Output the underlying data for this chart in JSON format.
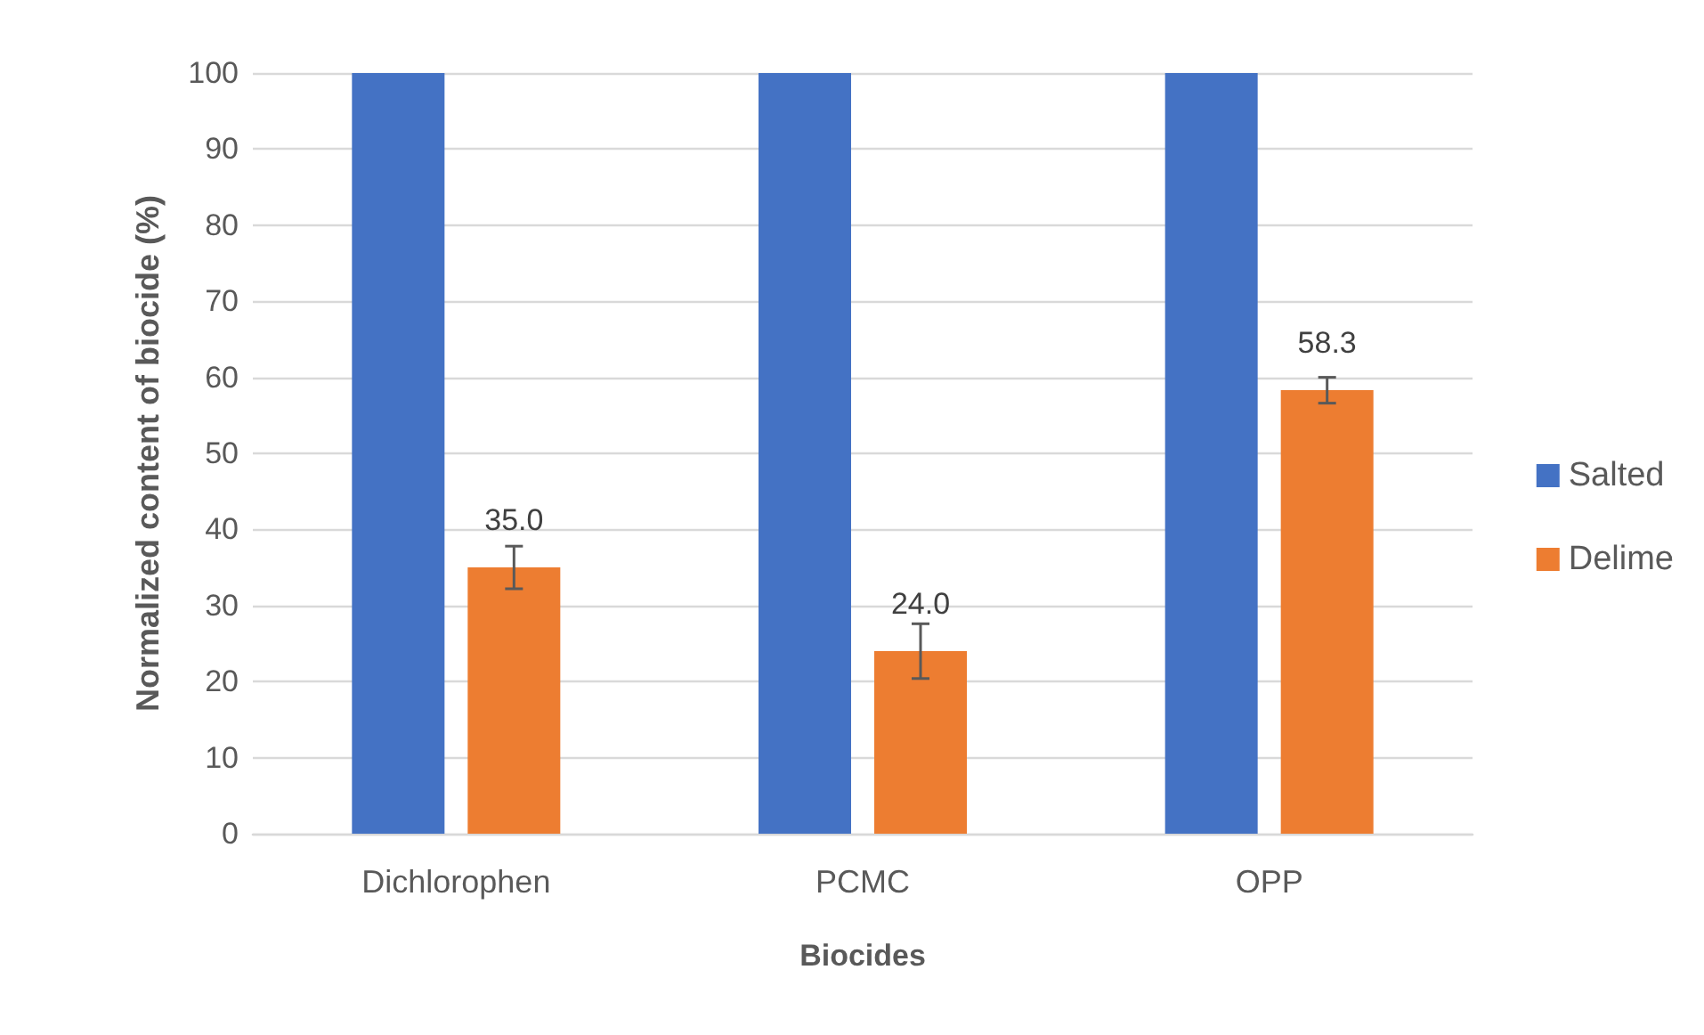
{
  "chart_data": {
    "type": "bar",
    "xlabel": "Biocides",
    "ylabel": "Normalized content of biocide (%)",
    "categories": [
      "Dichlorophen",
      "PCMC",
      "OPP"
    ],
    "series": [
      {
        "name": "Salted",
        "color": "#4472c4",
        "values": [
          100,
          100,
          100
        ]
      },
      {
        "name": "Delime",
        "color": "#ed7d31",
        "values": [
          35.0,
          24.0,
          58.3
        ],
        "errors": [
          2.8,
          3.6,
          1.7
        ],
        "value_labels": [
          "35.0",
          "24.0",
          "58.3"
        ]
      }
    ],
    "ylim": [
      0,
      100
    ],
    "yticks": [
      0,
      10,
      20,
      30,
      40,
      50,
      60,
      70,
      80,
      90,
      100
    ],
    "grid": "y",
    "legend": "right"
  }
}
